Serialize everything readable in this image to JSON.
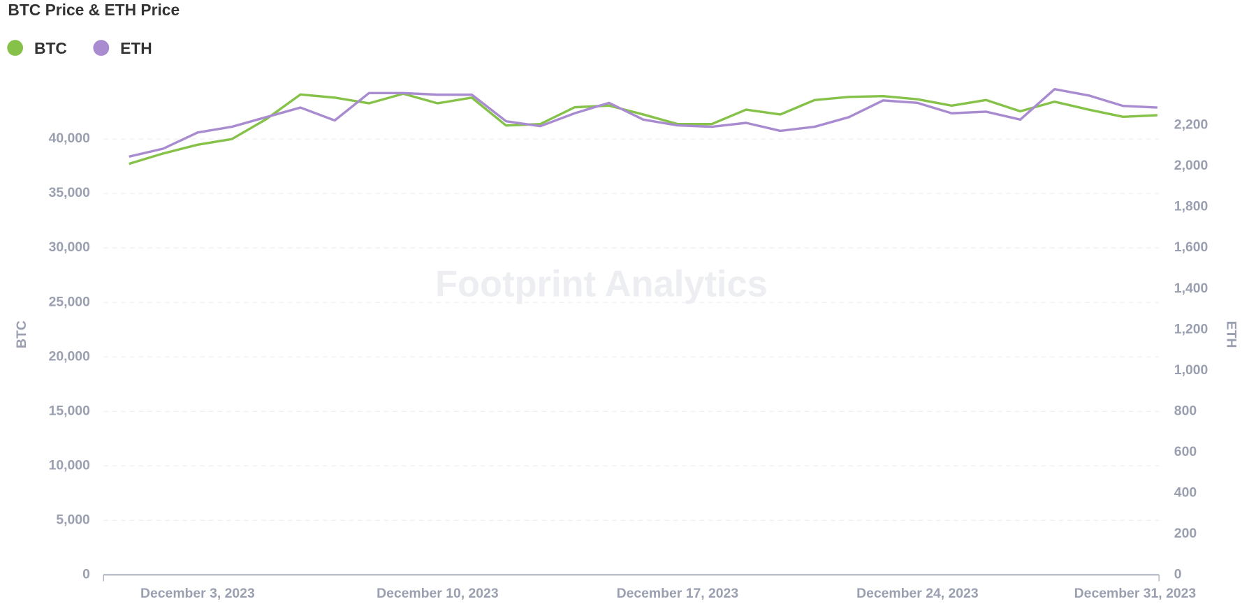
{
  "chart_data": {
    "type": "line",
    "title": "BTC Price & ETH Price",
    "watermark": "Footprint Analytics",
    "y_label": "BTC",
    "y2_label": "ETH",
    "x": [
      "2023-12-01",
      "2023-12-02",
      "2023-12-03",
      "2023-12-04",
      "2023-12-05",
      "2023-12-06",
      "2023-12-07",
      "2023-12-08",
      "2023-12-09",
      "2023-12-10",
      "2023-12-11",
      "2023-12-12",
      "2023-12-13",
      "2023-12-14",
      "2023-12-15",
      "2023-12-16",
      "2023-12-17",
      "2023-12-18",
      "2023-12-19",
      "2023-12-20",
      "2023-12-21",
      "2023-12-22",
      "2023-12-23",
      "2023-12-24",
      "2023-12-25",
      "2023-12-26",
      "2023-12-27",
      "2023-12-28",
      "2023-12-29",
      "2023-12-30",
      "2023-12-31"
    ],
    "xticks": [
      {
        "value": "2023-12-03",
        "label": "December 3, 2023"
      },
      {
        "value": "2023-12-10",
        "label": "December 10, 2023"
      },
      {
        "value": "2023-12-17",
        "label": "December 17, 2023"
      },
      {
        "value": "2023-12-24",
        "label": "December 24, 2023"
      },
      {
        "value": "2023-12-31",
        "label": "December 31, 2023"
      }
    ],
    "ylim": [
      0,
      45000
    ],
    "yticks": [
      0,
      {
        "value": 5000,
        "label": "5,000"
      },
      {
        "value": 10000,
        "label": "10,000"
      },
      {
        "value": 15000,
        "label": "15,000"
      },
      {
        "value": 20000,
        "label": "20,000"
      },
      {
        "value": 25000,
        "label": "25,000"
      },
      {
        "value": 30000,
        "label": "30,000"
      },
      {
        "value": 35000,
        "label": "35,000"
      },
      {
        "value": 40000,
        "label": "40,000"
      }
    ],
    "y2lim": [
      0,
      2400
    ],
    "y2ticks": [
      0,
      200,
      400,
      600,
      800,
      {
        "value": 1000,
        "label": "1,000"
      },
      {
        "value": 1200,
        "label": "1,200"
      },
      {
        "value": 1400,
        "label": "1,400"
      },
      {
        "value": 1600,
        "label": "1,600"
      },
      {
        "value": 1800,
        "label": "1,800"
      },
      {
        "value": 2000,
        "label": "2,000"
      },
      {
        "value": 2200,
        "label": "2,200"
      }
    ],
    "grid": true,
    "series": [
      {
        "name": "BTC",
        "color": "#86c24a",
        "values": [
          37720,
          38670,
          39470,
          39990,
          41810,
          44080,
          43790,
          43270,
          44150,
          43270,
          43790,
          41230,
          41370,
          42910,
          43060,
          42250,
          41370,
          41370,
          42690,
          42250,
          43570,
          43860,
          43930,
          43640,
          43060,
          43570,
          42540,
          43420,
          42690,
          42030,
          42180
        ]
      },
      {
        "name": "ETH",
        "color": "#a98bd0",
        "axis": "y2",
        "values": [
          2047,
          2086,
          2165,
          2193,
          2240,
          2287,
          2224,
          2358,
          2358,
          2350,
          2350,
          2220,
          2196,
          2259,
          2310,
          2228,
          2200,
          2193,
          2212,
          2173,
          2193,
          2240,
          2322,
          2310,
          2259,
          2267,
          2228,
          2377,
          2346,
          2295,
          2287
        ]
      }
    ]
  }
}
